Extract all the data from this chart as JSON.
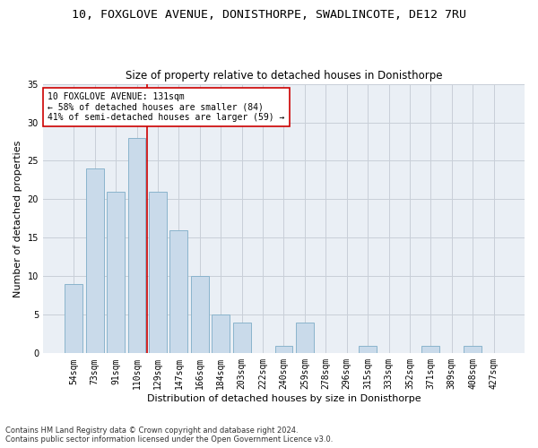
{
  "title": "10, FOXGLOVE AVENUE, DONISTHORPE, SWADLINCOTE, DE12 7RU",
  "subtitle": "Size of property relative to detached houses in Donisthorpe",
  "xlabel": "Distribution of detached houses by size in Donisthorpe",
  "ylabel": "Number of detached properties",
  "categories": [
    "54sqm",
    "73sqm",
    "91sqm",
    "110sqm",
    "129sqm",
    "147sqm",
    "166sqm",
    "184sqm",
    "203sqm",
    "222sqm",
    "240sqm",
    "259sqm",
    "278sqm",
    "296sqm",
    "315sqm",
    "333sqm",
    "352sqm",
    "371sqm",
    "389sqm",
    "408sqm",
    "427sqm"
  ],
  "values": [
    9,
    24,
    21,
    28,
    21,
    16,
    10,
    5,
    4,
    0,
    1,
    4,
    0,
    0,
    1,
    0,
    0,
    1,
    0,
    1,
    0
  ],
  "bar_color": "#c9daea",
  "bar_edge_color": "#8ab4cc",
  "vline_color": "#cc0000",
  "annotation_text": "10 FOXGLOVE AVENUE: 131sqm\n← 58% of detached houses are smaller (84)\n41% of semi-detached houses are larger (59) →",
  "annotation_box_color": "white",
  "annotation_box_edge_color": "#cc0000",
  "ylim": [
    0,
    35
  ],
  "yticks": [
    0,
    5,
    10,
    15,
    20,
    25,
    30,
    35
  ],
  "grid_color": "#c8cfd8",
  "bg_color": "#eaeff5",
  "footer": "Contains HM Land Registry data © Crown copyright and database right 2024.\nContains public sector information licensed under the Open Government Licence v3.0.",
  "title_fontsize": 9.5,
  "subtitle_fontsize": 8.5,
  "ylabel_fontsize": 8,
  "xlabel_fontsize": 8,
  "tick_fontsize": 7,
  "annot_fontsize": 7,
  "footer_fontsize": 6
}
